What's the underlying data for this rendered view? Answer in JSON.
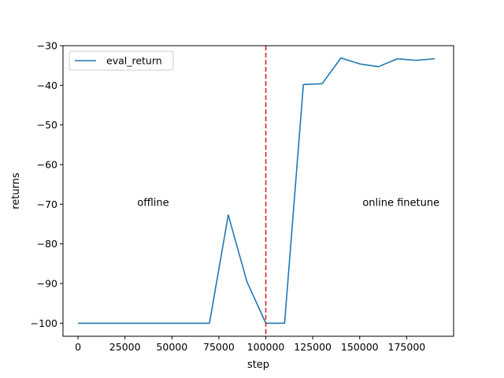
{
  "chart_data": {
    "type": "line",
    "title": "",
    "xlabel": "step",
    "ylabel": "returns",
    "xlim": [
      -8000,
      200000
    ],
    "ylim": [
      -103.3,
      -30
    ],
    "xticks": [
      0,
      25000,
      50000,
      75000,
      100000,
      125000,
      150000,
      175000
    ],
    "xtick_labels": [
      "0",
      "25000",
      "50000",
      "75000",
      "100000",
      "125000",
      "150000",
      "175000"
    ],
    "yticks": [
      -100,
      -90,
      -80,
      -70,
      -60,
      -50,
      -40,
      -30
    ],
    "ytick_labels": [
      "−100",
      "−90",
      "−80",
      "−70",
      "−60",
      "−50",
      "−40",
      "−30"
    ],
    "grid": false,
    "legend_position": "top-left",
    "series": [
      {
        "name": "eval_return",
        "color": "#1f77b4",
        "x": [
          0,
          10000,
          20000,
          30000,
          40000,
          50000,
          60000,
          70000,
          80000,
          90000,
          100000,
          110000,
          120000,
          130000,
          140000,
          150000,
          160000,
          170000,
          180000,
          190000
        ],
        "y": [
          -100,
          -100,
          -100,
          -100,
          -100,
          -100,
          -100,
          -100,
          -72.7,
          -89.6,
          -100,
          -100,
          -39.8,
          -39.6,
          -33.1,
          -34.6,
          -35.3,
          -33.3,
          -33.7,
          -33.3
        ]
      }
    ],
    "vline": {
      "x": 100000,
      "color": "#d62728",
      "style": "dashed"
    },
    "annotations": [
      {
        "text": "offline",
        "x": 40000,
        "y": -71
      },
      {
        "text": "online finetune",
        "x": 172000,
        "y": -71
      }
    ]
  }
}
